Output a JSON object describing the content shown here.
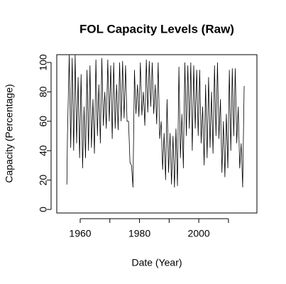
{
  "chart_data": {
    "type": "line",
    "title": "FOL Capacity Levels (Raw)",
    "x_label": "Date (Year)",
    "y_label": "Capacity (Percentage)",
    "color": "#000000",
    "xlim": [
      1952.1,
      2019.6
    ],
    "ylim": [
      -2.4,
      105.3
    ],
    "xticks": [
      1960,
      1980,
      2000
    ],
    "xticks_unlabeled": [
      1970,
      1990,
      2010
    ],
    "yticks": [
      0,
      20,
      40,
      60,
      80,
      100
    ],
    "x": [
      1955.5,
      1955.7,
      1956.3,
      1956.8,
      1957.3,
      1957.8,
      1958.3,
      1958.8,
      1959.3,
      1959.8,
      1960.3,
      1960.8,
      1961.3,
      1961.8,
      1962.3,
      1962.8,
      1963.3,
      1963.8,
      1964.3,
      1964.8,
      1965.3,
      1965.8,
      1966.3,
      1966.8,
      1967.3,
      1967.8,
      1968.3,
      1968.8,
      1969.3,
      1969.8,
      1970.3,
      1970.8,
      1971.3,
      1971.8,
      1972.3,
      1972.8,
      1973.3,
      1973.8,
      1974.3,
      1974.8,
      1975.3,
      1975.8,
      1976.3,
      1976.8,
      1977.3,
      1977.8,
      1978.3,
      1978.8,
      1979.3,
      1979.8,
      1980.3,
      1980.8,
      1981.3,
      1981.8,
      1982.3,
      1982.8,
      1983.3,
      1983.8,
      1984.3,
      1984.8,
      1985.3,
      1985.8,
      1986.3,
      1986.8,
      1987.3,
      1987.8,
      1988.3,
      1988.8,
      1989.3,
      1989.8,
      1990.3,
      1990.8,
      1991.3,
      1991.8,
      1992.3,
      1992.8,
      1993.3,
      1993.8,
      1994.3,
      1994.8,
      1995.3,
      1995.8,
      1996.3,
      1996.8,
      1997.3,
      1997.8,
      1998.3,
      1998.8,
      1999.3,
      1999.8,
      2000.3,
      2000.8,
      2001.3,
      2001.8,
      2002.3,
      2002.8,
      2003.3,
      2003.8,
      2004.3,
      2004.8,
      2005.3,
      2005.8,
      2006.3,
      2006.8,
      2007.3,
      2007.8,
      2008.3,
      2008.8,
      2009.3,
      2009.8,
      2010.3,
      2010.8,
      2011.3,
      2011.8,
      2012.3,
      2012.8,
      2013.3,
      2013.8,
      2014.3,
      2014.8,
      2015.3
    ],
    "values": [
      17,
      50,
      105,
      42,
      103,
      40,
      105,
      45,
      90,
      35,
      92,
      28,
      70,
      35,
      95,
      40,
      98,
      42,
      75,
      38,
      102,
      50,
      85,
      45,
      103,
      57,
      80,
      55,
      102,
      60,
      98,
      48,
      100,
      55,
      85,
      54,
      100,
      60,
      101,
      62,
      98,
      60,
      60,
      32,
      30,
      15,
      95,
      65,
      85,
      63,
      100,
      64,
      80,
      57,
      102,
      66,
      101,
      70,
      100,
      65,
      85,
      58,
      100,
      48,
      60,
      27,
      52,
      20,
      75,
      25,
      52,
      17,
      50,
      15,
      55,
      16,
      97,
      35,
      65,
      28,
      100,
      50,
      98,
      55,
      100,
      40,
      98,
      55,
      95,
      50,
      95,
      45,
      70,
      30,
      85,
      35,
      90,
      42,
      80,
      38,
      98,
      50,
      100,
      48,
      75,
      25,
      60,
      22,
      65,
      28,
      95,
      40,
      96,
      50,
      96,
      45,
      70,
      28,
      45,
      15,
      84
    ]
  }
}
